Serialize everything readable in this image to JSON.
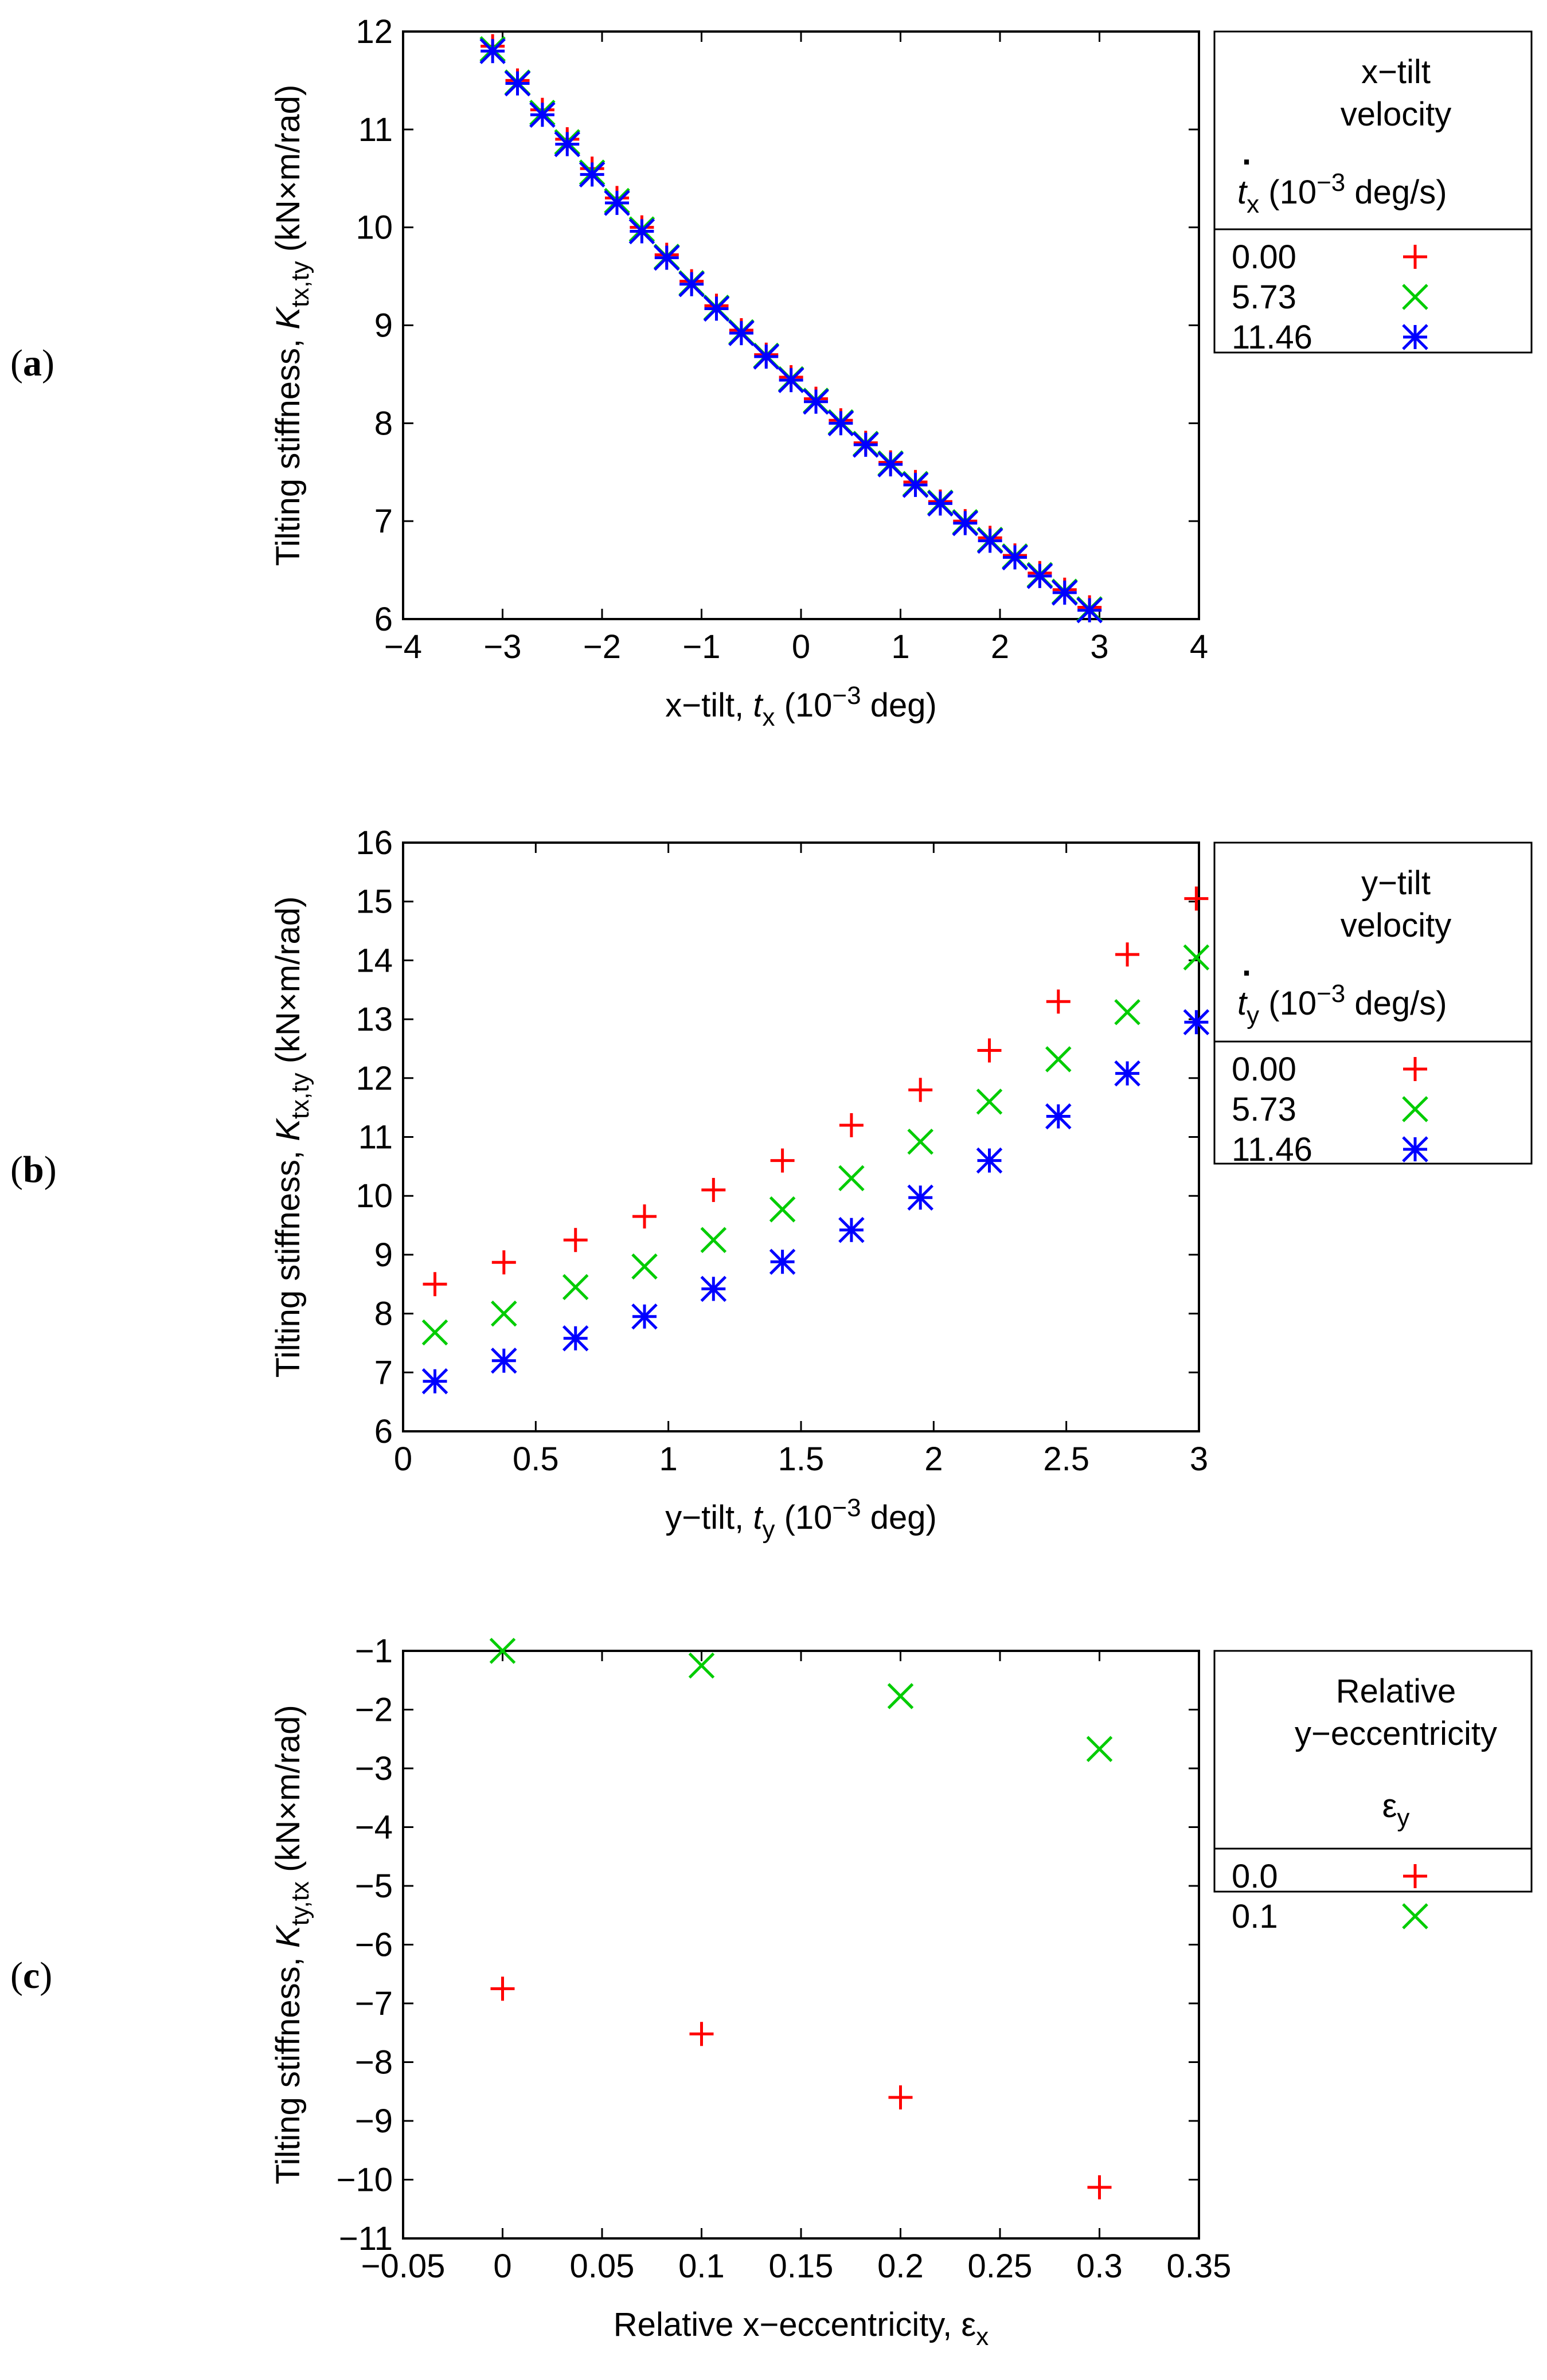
{
  "colors": {
    "red": "#ff0000",
    "green": "#00cc00",
    "blue": "#0000ff",
    "axis": "#000000"
  },
  "chart_data": [
    {
      "panel": "(a)",
      "type": "scatter",
      "xlabel": "x−tilt, tx (10−3 deg)",
      "ylabel": "Tilting stiffness, Ktx,ty (kN×m/rad)",
      "xlim": [
        -4,
        4
      ],
      "ylim": [
        6,
        12
      ],
      "xticks": [
        "−4",
        "−3",
        "−2",
        "−1",
        "0",
        "1",
        "2",
        "3",
        "4"
      ],
      "yticks": [
        "6",
        "7",
        "8",
        "9",
        "10",
        "11",
        "12"
      ],
      "legend": {
        "title_lines": [
          "x−tilt",
          "velocity"
        ],
        "dot": ".",
        "variable_line": "tx (10−3 deg/s)",
        "position": "right"
      },
      "series": [
        {
          "name": "0.00",
          "marker": "plus",
          "color": "#ff0000",
          "x": [
            -3.1,
            -2.85,
            -2.6,
            -2.35,
            -2.1,
            -1.85,
            -1.6,
            -1.35,
            -1.1,
            -0.85,
            -0.6,
            -0.35,
            -0.1,
            0.15,
            0.4,
            0.65,
            0.9,
            1.15,
            1.4,
            1.65,
            1.9,
            2.15,
            2.4,
            2.65,
            2.9
          ],
          "y": [
            11.85,
            11.5,
            11.2,
            10.9,
            10.6,
            10.3,
            10.0,
            9.72,
            9.45,
            9.2,
            8.95,
            8.7,
            8.47,
            8.25,
            8.03,
            7.8,
            7.6,
            7.4,
            7.2,
            7.0,
            6.83,
            6.65,
            6.47,
            6.3,
            6.12
          ]
        },
        {
          "name": "5.73",
          "marker": "cross",
          "color": "#00cc00",
          "x": [
            -3.1,
            -2.85,
            -2.6,
            -2.35,
            -2.1,
            -1.85,
            -1.6,
            -1.35,
            -1.1,
            -0.85,
            -0.6,
            -0.35,
            -0.1,
            0.15,
            0.4,
            0.65,
            0.9,
            1.15,
            1.4,
            1.65,
            1.9,
            2.15,
            2.4,
            2.65,
            2.9
          ],
          "y": [
            11.82,
            11.48,
            11.17,
            10.87,
            10.56,
            10.27,
            9.98,
            9.7,
            9.43,
            9.18,
            8.93,
            8.69,
            8.45,
            8.23,
            8.01,
            7.79,
            7.59,
            7.38,
            7.19,
            6.99,
            6.81,
            6.64,
            6.45,
            6.28,
            6.1
          ]
        },
        {
          "name": "11.46",
          "marker": "star",
          "color": "#0000ff",
          "x": [
            -3.1,
            -2.85,
            -2.6,
            -2.35,
            -2.1,
            -1.85,
            -1.6,
            -1.35,
            -1.1,
            -0.85,
            -0.6,
            -0.35,
            -0.1,
            0.15,
            0.4,
            0.65,
            0.9,
            1.15,
            1.4,
            1.65,
            1.9,
            2.15,
            2.4,
            2.65,
            2.9
          ],
          "y": [
            11.8,
            11.47,
            11.15,
            10.85,
            10.54,
            10.25,
            9.96,
            9.69,
            9.42,
            9.17,
            8.92,
            8.68,
            8.44,
            8.22,
            8.0,
            7.78,
            7.58,
            7.37,
            7.18,
            6.98,
            6.8,
            6.63,
            6.44,
            6.27,
            6.09
          ]
        }
      ]
    },
    {
      "panel": "(b)",
      "type": "scatter",
      "xlabel": "y−tilt, ty (10−3 deg)",
      "ylabel": "Tilting stiffness, Ktx,ty (kN×m/rad)",
      "xlim": [
        0,
        3
      ],
      "ylim": [
        6,
        16
      ],
      "xticks": [
        "0",
        "0.5",
        "1",
        "1.5",
        "2",
        "2.5",
        "3"
      ],
      "yticks": [
        "6",
        "7",
        "8",
        "9",
        "10",
        "11",
        "12",
        "13",
        "14",
        "15",
        "16"
      ],
      "legend": {
        "title_lines": [
          "y−tilt",
          "velocity"
        ],
        "dot": ".",
        "variable_line": "ty (10−3 deg/s)",
        "position": "right"
      },
      "series": [
        {
          "name": "0.00",
          "marker": "plus",
          "color": "#ff0000",
          "x": [
            0.12,
            0.38,
            0.65,
            0.91,
            1.17,
            1.43,
            1.69,
            1.95,
            2.21,
            2.47,
            2.73,
            2.99
          ],
          "y": [
            8.5,
            8.87,
            9.25,
            9.65,
            10.1,
            10.6,
            11.2,
            11.8,
            12.47,
            13.3,
            14.1,
            15.05
          ]
        },
        {
          "name": "5.73",
          "marker": "cross",
          "color": "#00cc00",
          "x": [
            0.12,
            0.38,
            0.65,
            0.91,
            1.17,
            1.43,
            1.69,
            1.95,
            2.21,
            2.47,
            2.73,
            2.99
          ],
          "y": [
            7.68,
            8.0,
            8.45,
            8.8,
            9.25,
            9.77,
            10.3,
            10.92,
            11.6,
            12.32,
            13.12,
            14.05
          ]
        },
        {
          "name": "11.46",
          "marker": "star",
          "color": "#0000ff",
          "x": [
            0.12,
            0.38,
            0.65,
            0.91,
            1.17,
            1.43,
            1.69,
            1.95,
            2.21,
            2.47,
            2.73,
            2.99
          ],
          "y": [
            6.85,
            7.2,
            7.58,
            7.95,
            8.42,
            8.88,
            9.42,
            9.97,
            10.6,
            11.35,
            12.08,
            12.95
          ]
        }
      ]
    },
    {
      "panel": "(c)",
      "type": "scatter",
      "xlabel": "Relative x−eccentricity, εx",
      "ylabel": "Tilting stiffness, Kty,tx (kN×m/rad)",
      "xlim": [
        -0.05,
        0.35
      ],
      "ylim": [
        -11,
        -1
      ],
      "xticks": [
        "−0.05",
        "0",
        "0.05",
        "0.1",
        "0.15",
        "0.2",
        "0.25",
        "0.3",
        "0.35"
      ],
      "yticks": [
        "−11",
        "−10",
        "−9",
        "−8",
        "−7",
        "−6",
        "−5",
        "−4",
        "−3",
        "−2",
        "−1"
      ],
      "legend": {
        "title_lines": [
          "Relative",
          "y−eccentricity"
        ],
        "variable_line": "εy",
        "position": "right"
      },
      "series": [
        {
          "name": "0.0",
          "marker": "plus",
          "color": "#ff0000",
          "x": [
            0,
            0.1,
            0.2,
            0.3
          ],
          "y": [
            -6.75,
            -7.52,
            -8.6,
            -10.13
          ]
        },
        {
          "name": "0.1",
          "marker": "cross",
          "color": "#00cc00",
          "x": [
            0,
            0.1,
            0.2,
            0.3
          ],
          "y": [
            -1.0,
            -1.25,
            -1.77,
            -2.67
          ]
        }
      ]
    }
  ]
}
